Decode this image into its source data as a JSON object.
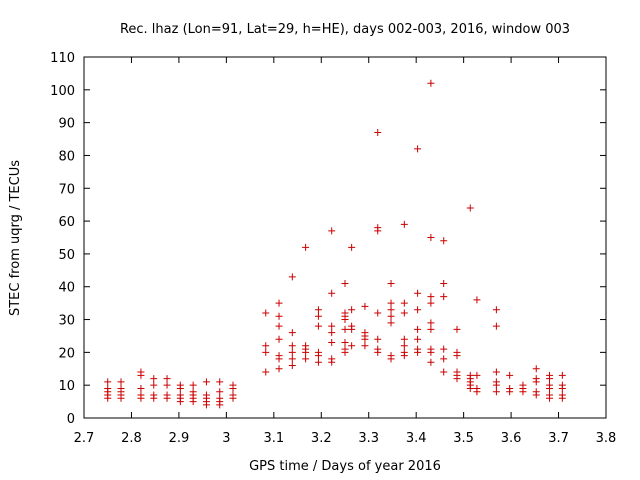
{
  "chart_data": {
    "type": "scatter",
    "title": "Rec. lhaz (Lon=91, Lat=29, h=HE), days 002-003, 2016, window 003",
    "xlabel": "GPS time / Days of year 2016",
    "ylabel": "STEC from uqrg / TECUs",
    "xlim": [
      2.7,
      3.8
    ],
    "ylim": [
      0,
      110
    ],
    "x_ticks": [
      "2.7",
      "2.8",
      "2.9",
      "3",
      "3.1",
      "3.2",
      "3.3",
      "3.4",
      "3.5",
      "3.6",
      "3.7",
      "3.8"
    ],
    "y_ticks": [
      "0",
      "10",
      "20",
      "30",
      "40",
      "50",
      "60",
      "70",
      "80",
      "90",
      "100",
      "110"
    ],
    "grid": false,
    "marker": "plus",
    "color": "#cc0000",
    "points": [
      [
        2.75,
        6
      ],
      [
        2.75,
        7
      ],
      [
        2.75,
        8
      ],
      [
        2.75,
        9
      ],
      [
        2.75,
        11
      ],
      [
        2.778,
        6
      ],
      [
        2.778,
        7
      ],
      [
        2.778,
        8
      ],
      [
        2.778,
        9
      ],
      [
        2.778,
        11
      ],
      [
        2.82,
        6
      ],
      [
        2.82,
        7
      ],
      [
        2.82,
        9
      ],
      [
        2.82,
        13
      ],
      [
        2.82,
        14
      ],
      [
        2.847,
        6
      ],
      [
        2.847,
        7
      ],
      [
        2.847,
        10
      ],
      [
        2.847,
        12
      ],
      [
        2.875,
        6
      ],
      [
        2.875,
        7
      ],
      [
        2.875,
        10
      ],
      [
        2.875,
        12
      ],
      [
        2.903,
        5
      ],
      [
        2.903,
        6
      ],
      [
        2.903,
        7
      ],
      [
        2.903,
        9
      ],
      [
        2.903,
        10
      ],
      [
        2.93,
        5
      ],
      [
        2.93,
        6
      ],
      [
        2.93,
        7
      ],
      [
        2.93,
        8
      ],
      [
        2.93,
        10
      ],
      [
        2.958,
        4
      ],
      [
        2.958,
        5
      ],
      [
        2.958,
        6
      ],
      [
        2.958,
        7
      ],
      [
        2.958,
        11
      ],
      [
        2.986,
        4
      ],
      [
        2.986,
        5
      ],
      [
        2.986,
        6
      ],
      [
        2.986,
        8
      ],
      [
        2.986,
        11
      ],
      [
        3.014,
        6
      ],
      [
        3.014,
        7
      ],
      [
        3.014,
        9
      ],
      [
        3.014,
        10
      ],
      [
        3.083,
        14
      ],
      [
        3.083,
        20
      ],
      [
        3.083,
        22
      ],
      [
        3.083,
        32
      ],
      [
        3.111,
        15
      ],
      [
        3.111,
        18
      ],
      [
        3.111,
        19
      ],
      [
        3.111,
        24
      ],
      [
        3.111,
        28
      ],
      [
        3.111,
        31
      ],
      [
        3.111,
        35
      ],
      [
        3.139,
        16
      ],
      [
        3.139,
        18
      ],
      [
        3.139,
        20
      ],
      [
        3.139,
        22
      ],
      [
        3.139,
        26
      ],
      [
        3.139,
        43
      ],
      [
        3.167,
        18
      ],
      [
        3.167,
        20
      ],
      [
        3.167,
        21
      ],
      [
        3.167,
        22
      ],
      [
        3.167,
        52
      ],
      [
        3.194,
        17
      ],
      [
        3.194,
        19
      ],
      [
        3.194,
        20
      ],
      [
        3.194,
        28
      ],
      [
        3.194,
        31
      ],
      [
        3.194,
        33
      ],
      [
        3.222,
        17
      ],
      [
        3.222,
        18
      ],
      [
        3.222,
        23
      ],
      [
        3.222,
        26
      ],
      [
        3.222,
        28
      ],
      [
        3.222,
        38
      ],
      [
        3.222,
        57
      ],
      [
        3.25,
        20
      ],
      [
        3.25,
        21
      ],
      [
        3.25,
        23
      ],
      [
        3.25,
        27
      ],
      [
        3.25,
        30
      ],
      [
        3.25,
        31
      ],
      [
        3.25,
        32
      ],
      [
        3.25,
        41
      ],
      [
        3.264,
        22
      ],
      [
        3.264,
        27
      ],
      [
        3.264,
        28
      ],
      [
        3.264,
        33
      ],
      [
        3.264,
        52
      ],
      [
        3.292,
        22
      ],
      [
        3.292,
        24
      ],
      [
        3.292,
        25
      ],
      [
        3.292,
        26
      ],
      [
        3.292,
        34
      ],
      [
        3.319,
        20
      ],
      [
        3.319,
        21
      ],
      [
        3.319,
        24
      ],
      [
        3.319,
        32
      ],
      [
        3.319,
        57
      ],
      [
        3.319,
        58
      ],
      [
        3.319,
        87
      ],
      [
        3.347,
        18
      ],
      [
        3.347,
        19
      ],
      [
        3.347,
        29
      ],
      [
        3.347,
        31
      ],
      [
        3.347,
        33
      ],
      [
        3.347,
        35
      ],
      [
        3.347,
        41
      ],
      [
        3.375,
        19
      ],
      [
        3.375,
        20
      ],
      [
        3.375,
        22
      ],
      [
        3.375,
        24
      ],
      [
        3.375,
        32
      ],
      [
        3.375,
        35
      ],
      [
        3.375,
        59
      ],
      [
        3.403,
        20
      ],
      [
        3.403,
        21
      ],
      [
        3.403,
        24
      ],
      [
        3.403,
        27
      ],
      [
        3.403,
        33
      ],
      [
        3.403,
        38
      ],
      [
        3.403,
        82
      ],
      [
        3.431,
        17
      ],
      [
        3.431,
        20
      ],
      [
        3.431,
        21
      ],
      [
        3.431,
        27
      ],
      [
        3.431,
        29
      ],
      [
        3.431,
        35
      ],
      [
        3.431,
        37
      ],
      [
        3.431,
        55
      ],
      [
        3.431,
        102
      ],
      [
        3.458,
        14
      ],
      [
        3.458,
        18
      ],
      [
        3.458,
        21
      ],
      [
        3.458,
        37
      ],
      [
        3.458,
        41
      ],
      [
        3.458,
        54
      ],
      [
        3.486,
        12
      ],
      [
        3.486,
        13
      ],
      [
        3.486,
        14
      ],
      [
        3.486,
        19
      ],
      [
        3.486,
        20
      ],
      [
        3.486,
        27
      ],
      [
        3.514,
        9
      ],
      [
        3.514,
        10
      ],
      [
        3.514,
        11
      ],
      [
        3.514,
        12
      ],
      [
        3.514,
        13
      ],
      [
        3.514,
        64
      ],
      [
        3.528,
        8
      ],
      [
        3.528,
        9
      ],
      [
        3.528,
        13
      ],
      [
        3.528,
        36
      ],
      [
        3.569,
        8
      ],
      [
        3.569,
        10
      ],
      [
        3.569,
        11
      ],
      [
        3.569,
        14
      ],
      [
        3.569,
        28
      ],
      [
        3.569,
        33
      ],
      [
        3.597,
        8
      ],
      [
        3.597,
        9
      ],
      [
        3.597,
        13
      ],
      [
        3.625,
        8
      ],
      [
        3.625,
        9
      ],
      [
        3.625,
        10
      ],
      [
        3.653,
        7
      ],
      [
        3.653,
        8
      ],
      [
        3.653,
        11
      ],
      [
        3.653,
        12
      ],
      [
        3.653,
        15
      ],
      [
        3.681,
        6
      ],
      [
        3.681,
        7
      ],
      [
        3.681,
        9
      ],
      [
        3.681,
        10
      ],
      [
        3.681,
        12
      ],
      [
        3.681,
        13
      ],
      [
        3.708,
        6
      ],
      [
        3.708,
        7
      ],
      [
        3.708,
        9
      ],
      [
        3.708,
        10
      ],
      [
        3.708,
        13
      ]
    ]
  }
}
